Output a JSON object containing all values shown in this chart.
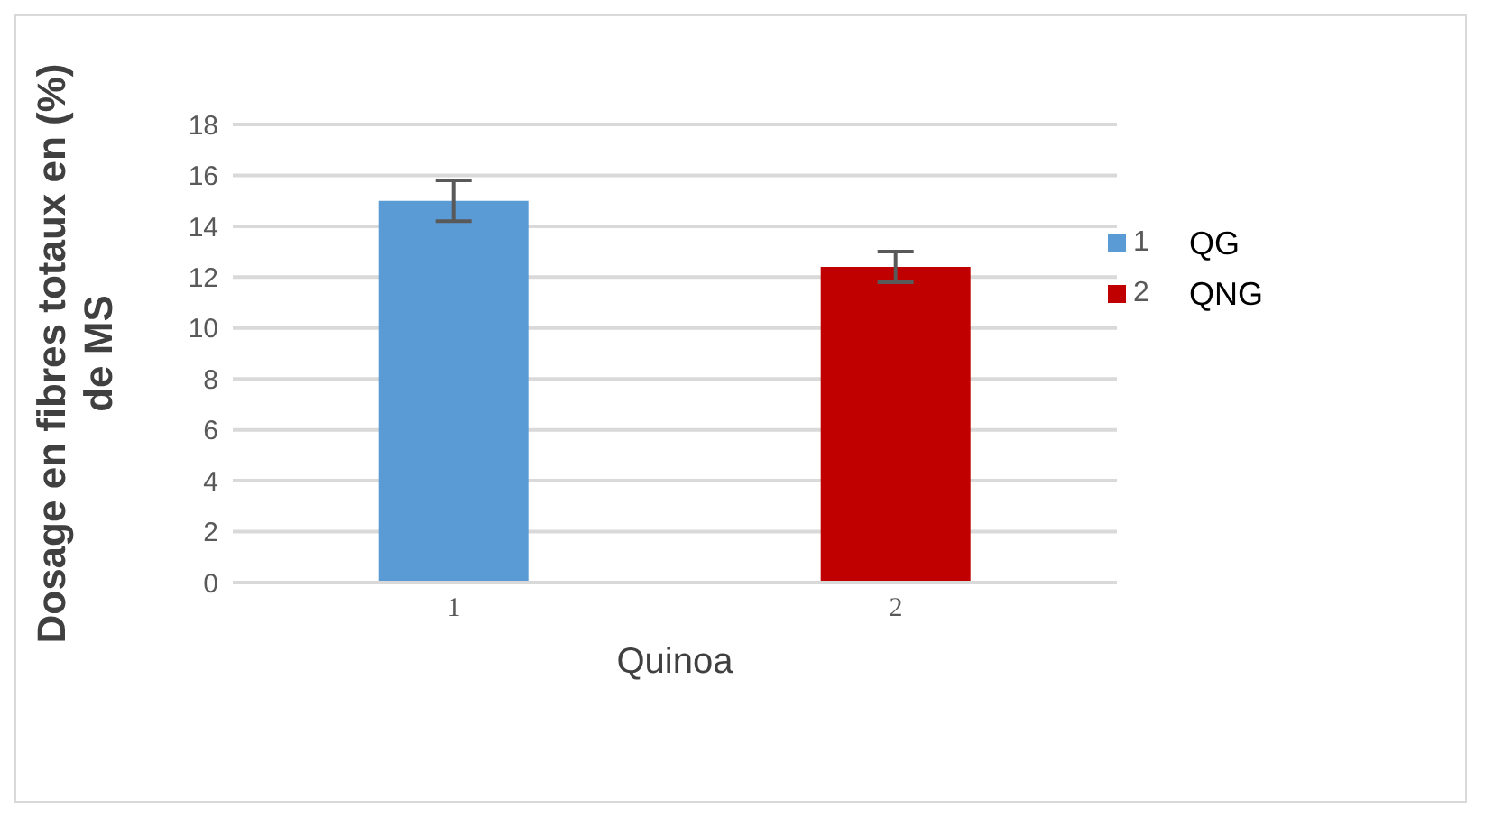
{
  "chart_data": {
    "type": "bar",
    "xlabel": "Quinoa",
    "ylabel": "Dosage en fibres totaux en (%)\nde  MS",
    "categories": [
      "1",
      "2"
    ],
    "stacked": true,
    "series": [
      {
        "name": "1",
        "color": "#5b9bd5",
        "values": [
          15.0,
          null
        ],
        "errors": [
          0.8,
          null
        ]
      },
      {
        "name": "2",
        "color": "#c00000",
        "values": [
          null,
          12.4
        ],
        "errors": [
          null,
          0.6
        ]
      }
    ],
    "ylim": [
      0,
      18
    ],
    "yticks": [
      0,
      2,
      4,
      6,
      8,
      10,
      12,
      14,
      16,
      18
    ],
    "grid": "y",
    "legend": "right",
    "annotations": [
      "QG",
      "QNG"
    ]
  }
}
